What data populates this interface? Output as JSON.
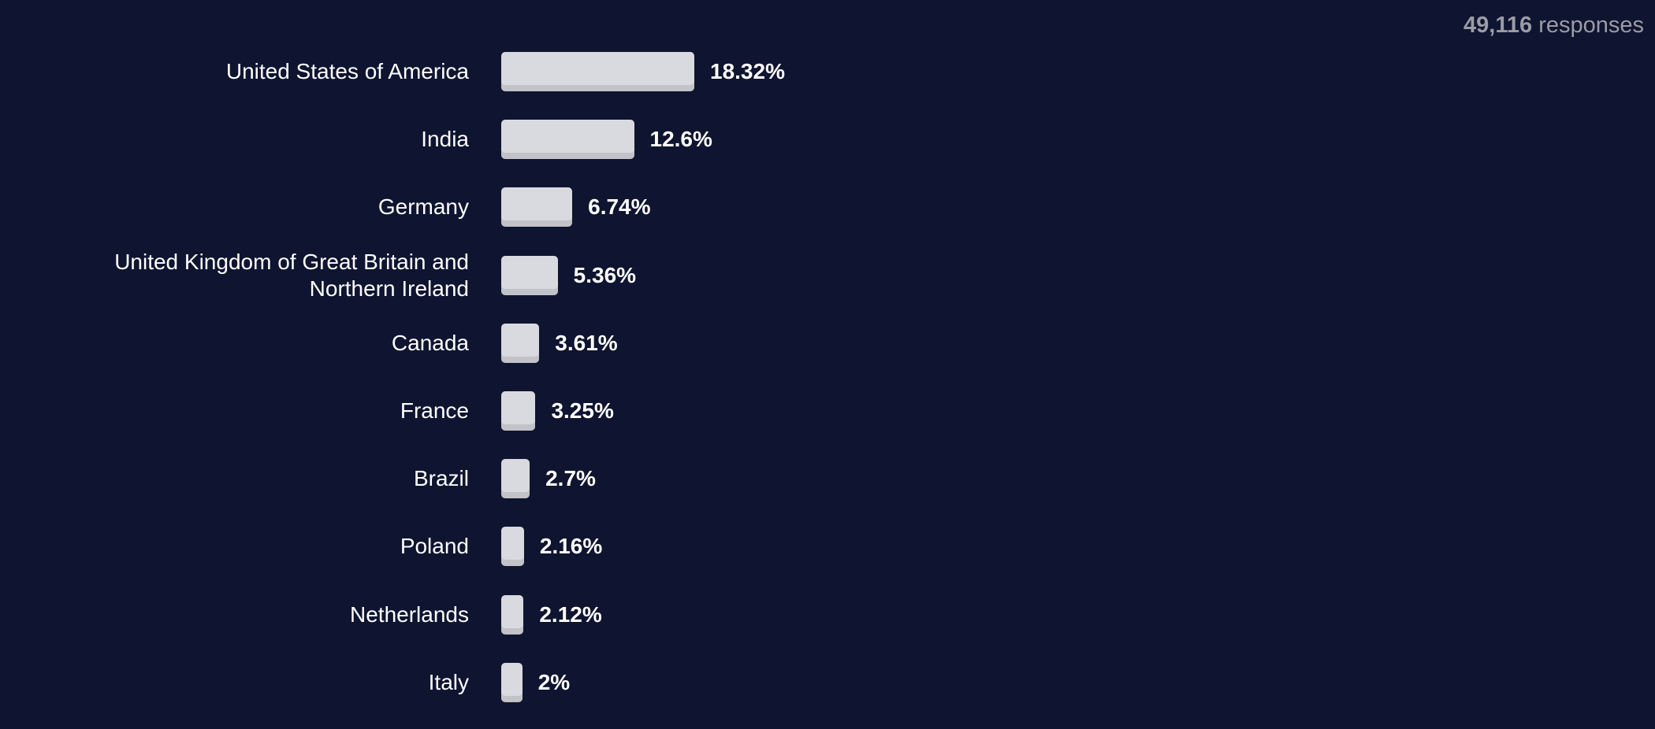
{
  "chart_data": {
    "type": "bar",
    "orientation": "horizontal",
    "response_count": "49,116",
    "response_label": "responses",
    "categories": [
      "United States of America",
      "India",
      "Germany",
      "United Kingdom of Great Britain and Northern Ireland",
      "Canada",
      "France",
      "Brazil",
      "Poland",
      "Netherlands",
      "Italy"
    ],
    "values": [
      18.32,
      12.6,
      6.74,
      5.36,
      3.61,
      3.25,
      2.7,
      2.16,
      2.12,
      2
    ],
    "value_labels": [
      "18.32%",
      "12.6%",
      "6.74%",
      "5.36%",
      "3.61%",
      "3.25%",
      "2.7%",
      "2.16%",
      "2.12%",
      "2%"
    ],
    "color": "#d9dadf"
  }
}
